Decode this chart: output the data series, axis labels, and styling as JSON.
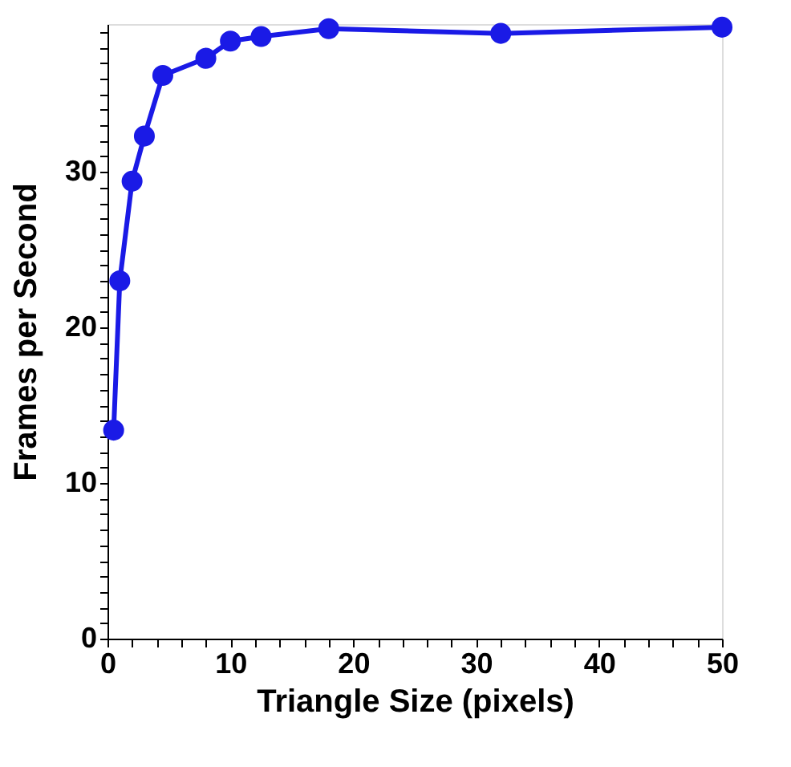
{
  "chart_data": {
    "type": "line",
    "xlabel": "Triangle Size (pixels)",
    "ylabel": "Frames per Second",
    "x": [
      0.5,
      1,
      2,
      3,
      4.5,
      8,
      10,
      12.5,
      18,
      32,
      50
    ],
    "series": [
      {
        "color": "#1a1ae6",
        "values": [
          13.4,
          23.0,
          29.4,
          32.3,
          36.2,
          37.3,
          38.4,
          38.7,
          39.2,
          38.9,
          39.3
        ]
      }
    ],
    "xlim": [
      0,
      50
    ],
    "ylim": [
      0,
      39.5
    ],
    "xticks": [
      0,
      {
        "value": 2,
        "label": null
      },
      {
        "value": 4,
        "label": null
      },
      {
        "value": 6,
        "label": null
      },
      {
        "value": 8,
        "label": null
      },
      10,
      {
        "value": 12,
        "label": null
      },
      {
        "value": 14,
        "label": null
      },
      {
        "value": 16,
        "label": null
      },
      {
        "value": 18,
        "label": null
      },
      20,
      {
        "value": 22,
        "label": null
      },
      {
        "value": 24,
        "label": null
      },
      {
        "value": 26,
        "label": null
      },
      {
        "value": 28,
        "label": null
      },
      30,
      {
        "value": 32,
        "label": null
      },
      {
        "value": 34,
        "label": null
      },
      {
        "value": 36,
        "label": null
      },
      {
        "value": 38,
        "label": null
      },
      40,
      {
        "value": 42,
        "label": null
      },
      {
        "value": 44,
        "label": null
      },
      {
        "value": 46,
        "label": null
      },
      {
        "value": 48,
        "label": null
      },
      50
    ],
    "yticks": [
      0,
      {
        "value": 1,
        "label": null
      },
      {
        "value": 2,
        "label": null
      },
      {
        "value": 3,
        "label": null
      },
      {
        "value": 4,
        "label": null
      },
      {
        "value": 5,
        "label": null
      },
      {
        "value": 6,
        "label": null
      },
      {
        "value": 7,
        "label": null
      },
      {
        "value": 8,
        "label": null
      },
      {
        "value": 9,
        "label": null
      },
      10,
      {
        "value": 11,
        "label": null
      },
      {
        "value": 12,
        "label": null
      },
      {
        "value": 13,
        "label": null
      },
      {
        "value": 14,
        "label": null
      },
      {
        "value": 15,
        "label": null
      },
      {
        "value": 16,
        "label": null
      },
      {
        "value": 17,
        "label": null
      },
      {
        "value": 18,
        "label": null
      },
      {
        "value": 19,
        "label": null
      },
      20,
      {
        "value": 21,
        "label": null
      },
      {
        "value": 22,
        "label": null
      },
      {
        "value": 23,
        "label": null
      },
      {
        "value": 24,
        "label": null
      },
      {
        "value": 25,
        "label": null
      },
      {
        "value": 26,
        "label": null
      },
      {
        "value": 27,
        "label": null
      },
      {
        "value": 28,
        "label": null
      },
      {
        "value": 29,
        "label": null
      },
      30,
      {
        "value": 31,
        "label": null
      },
      {
        "value": 32,
        "label": null
      },
      {
        "value": 33,
        "label": null
      },
      {
        "value": 34,
        "label": null
      },
      {
        "value": 35,
        "label": null
      },
      {
        "value": 36,
        "label": null
      },
      {
        "value": 37,
        "label": null
      },
      {
        "value": 38,
        "label": null
      },
      {
        "value": 39,
        "label": null
      }
    ],
    "grid": false,
    "marker": "circle",
    "line_style": "solid"
  }
}
